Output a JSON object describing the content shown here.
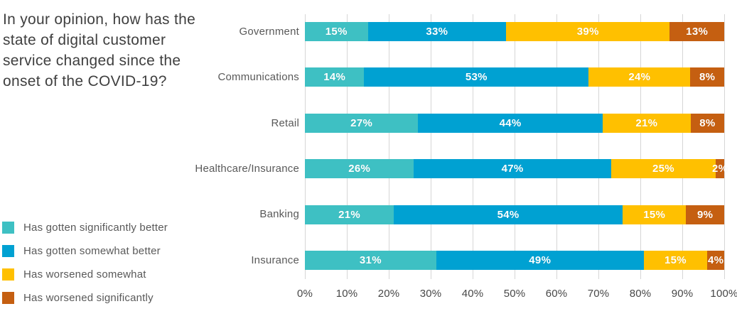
{
  "title": "In your opinion, how has the state of digital customer service changed since the onset of the COVID-19?",
  "colors": {
    "significantly_better": "#3EC0C3",
    "somewhat_better": "#00A1D2",
    "worsened_somewhat": "#FFC000",
    "worsened_significantly": "#C55F11",
    "gridline": "#D6D6D6",
    "category_text": "#595959",
    "tick_text": "#474747",
    "value_text": "#FFFFFF",
    "background": "#FFFFFF"
  },
  "chart_data": {
    "type": "bar",
    "orientation": "horizontal",
    "stacked": true,
    "grid": true,
    "legend_position": "bottom-left",
    "value_suffix": "%",
    "xlim": [
      0,
      100
    ],
    "x_ticks": [
      "0%",
      "10%",
      "20%",
      "30%",
      "40%",
      "50%",
      "60%",
      "70%",
      "80%",
      "90%",
      "100%"
    ],
    "categories": [
      "Government",
      "Communications",
      "Retail",
      "Healthcare/Insurance",
      "Banking",
      "Insurance"
    ],
    "series": [
      {
        "name": "Has gotten significantly better",
        "color": "#3EC0C3",
        "values": [
          15,
          14,
          27,
          26,
          21,
          31
        ]
      },
      {
        "name": "Has gotten somewhat better",
        "color": "#00A1D2",
        "values": [
          33,
          53,
          44,
          47,
          54,
          49
        ]
      },
      {
        "name": "Has worsened somewhat",
        "color": "#FFC000",
        "values": [
          39,
          24,
          21,
          25,
          15,
          15
        ]
      },
      {
        "name": "Has worsened significantly",
        "color": "#C55F11",
        "values": [
          13,
          8,
          8,
          2,
          9,
          4
        ]
      }
    ]
  }
}
